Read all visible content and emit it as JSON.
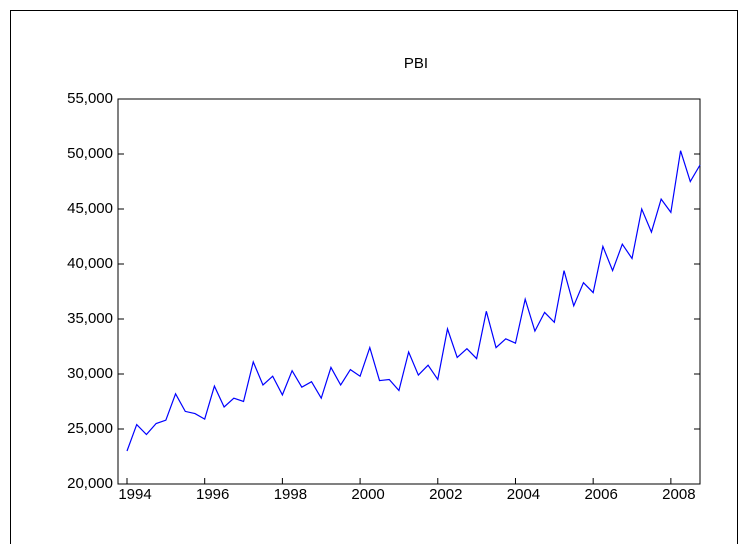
{
  "chart_data": {
    "type": "line",
    "title": "PBI",
    "categories": [
      "1994",
      null,
      null,
      null,
      null,
      null,
      null,
      null,
      "1996",
      null,
      null,
      null,
      null,
      null,
      null,
      null,
      "1998",
      null,
      null,
      null,
      null,
      null,
      null,
      null,
      "2000",
      null,
      null,
      null,
      null,
      null,
      null,
      null,
      "2002",
      null,
      null,
      null,
      null,
      null,
      null,
      null,
      "2004",
      null,
      null,
      null,
      null,
      null,
      null,
      null,
      "2006",
      null,
      null,
      null,
      null,
      null,
      null,
      null,
      "2008",
      null,
      null,
      null
    ],
    "series": [
      {
        "color": "#0000ff",
        "values": [
          23000,
          25400,
          24500,
          25500,
          25800,
          28200,
          26600,
          26400,
          25900,
          28900,
          27000,
          27800,
          27500,
          31100,
          29000,
          29800,
          28100,
          30300,
          28800,
          29300,
          27800,
          30600,
          29000,
          30400,
          29800,
          32400,
          29400,
          29500,
          28500,
          32000,
          29900,
          30800,
          29500,
          34100,
          31500,
          32300,
          31400,
          35700,
          32400,
          33200,
          32800,
          36800,
          33900,
          35600,
          34700,
          39400,
          36200,
          38300,
          37400,
          41600,
          39400,
          41800,
          40500,
          45000,
          42900,
          45900,
          44700,
          50300,
          47500,
          49000
        ]
      }
    ],
    "ylim": [
      20000,
      55000
    ],
    "yticks": [
      {
        "value": 20000,
        "label": "20,000"
      },
      {
        "value": 25000,
        "label": "25,000"
      },
      {
        "value": 30000,
        "label": "30,000"
      },
      {
        "value": 35000,
        "label": "35,000"
      },
      {
        "value": 40000,
        "label": "40,000"
      },
      {
        "value": 45000,
        "label": "45,000"
      },
      {
        "value": 50000,
        "label": "50,000"
      },
      {
        "value": 55000,
        "label": "55,000"
      }
    ],
    "grid": false
  }
}
